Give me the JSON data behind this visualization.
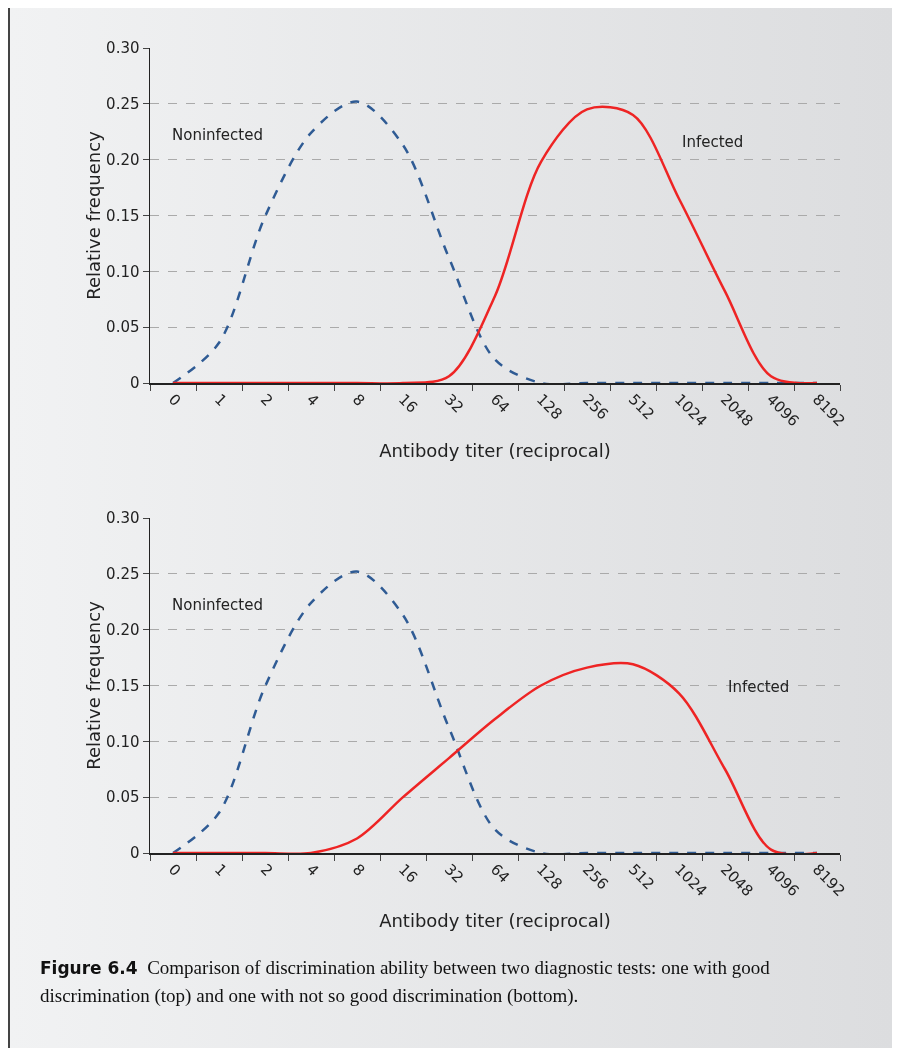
{
  "chart_data": [
    {
      "type": "line",
      "xlabel": "Antibody titer (reciprocal)",
      "ylabel": "Relative frequency",
      "categories": [
        "0",
        "1",
        "2",
        "4",
        "8",
        "16",
        "32",
        "64",
        "128",
        "256",
        "512",
        "1024",
        "2048",
        "4096",
        "8192"
      ],
      "series": [
        {
          "name": "Noninfected",
          "color": "#2f5b94",
          "line_style": "dashed",
          "values": [
            0,
            0.036,
            0.149,
            0.224,
            0.252,
            0.213,
            0.112,
            0.021,
            0,
            0,
            0,
            0,
            0,
            0,
            0
          ]
        },
        {
          "name": "Infected",
          "color": "#ee2424",
          "line_style": "solid",
          "values": [
            0,
            0,
            0,
            0,
            0,
            0,
            0.006,
            0.078,
            0.198,
            0.245,
            0.24,
            0.165,
            0.082,
            0.006,
            0
          ]
        }
      ],
      "ylim": [
        0,
        0.3
      ],
      "yticks": [
        {
          "value": 0,
          "label": "0"
        },
        {
          "value": 0.05,
          "label": "0.05"
        },
        {
          "value": 0.1,
          "label": "0.10"
        },
        {
          "value": 0.15,
          "label": "0.15"
        },
        {
          "value": 0.2,
          "label": "0.20"
        },
        {
          "value": 0.25,
          "label": "0.25"
        },
        {
          "value": 0.3,
          "label": "0.30"
        }
      ],
      "grid": "y",
      "legend": false,
      "marker": "none"
    },
    {
      "type": "line",
      "xlabel": "Antibody titer (reciprocal)",
      "ylabel": "Relative frequency",
      "categories": [
        "0",
        "1",
        "2",
        "4",
        "8",
        "16",
        "32",
        "64",
        "128",
        "256",
        "512",
        "1024",
        "2048",
        "4096",
        "8192"
      ],
      "series": [
        {
          "name": "Noninfected",
          "color": "#2f5b94",
          "line_style": "dashed",
          "values": [
            0,
            0.036,
            0.149,
            0.224,
            0.252,
            0.213,
            0.112,
            0.021,
            0,
            0,
            0,
            0,
            0,
            0,
            0
          ]
        },
        {
          "name": "Infected",
          "color": "#ee2424",
          "line_style": "solid",
          "values": [
            0,
            0,
            0,
            0,
            0.013,
            0.05,
            0.085,
            0.12,
            0.15,
            0.166,
            0.169,
            0.143,
            0.075,
            0.003,
            0
          ]
        }
      ],
      "ylim": [
        0,
        0.3
      ],
      "yticks": [
        {
          "value": 0,
          "label": "0"
        },
        {
          "value": 0.05,
          "label": "0.05"
        },
        {
          "value": 0.1,
          "label": "0.10"
        },
        {
          "value": 0.15,
          "label": "0.15"
        },
        {
          "value": 0.2,
          "label": "0.20"
        },
        {
          "value": 0.25,
          "label": "0.25"
        },
        {
          "value": 0.3,
          "label": "0.30"
        }
      ],
      "grid": "y",
      "legend": false,
      "marker": "none",
      "annotations": [
        "Figure 6.4",
        "Comparison of discrimination ability between two diagnostic tests: one with good discrimination (top) and one with not so good discrimination (bottom)."
      ]
    }
  ]
}
